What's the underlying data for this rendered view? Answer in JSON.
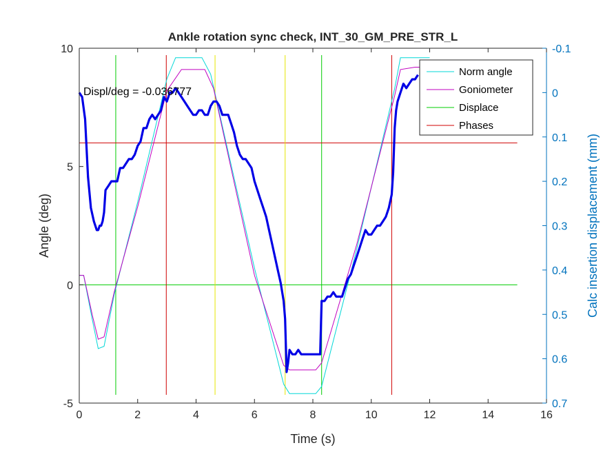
{
  "chart_data": {
    "type": "line",
    "title": "Ankle rotation sync check, INT_30_GM_PRE_STR_L",
    "xlabel": "Time (s)",
    "ylabel": "Angle (deg)",
    "y2label": "Calc insertion displacement (mm)",
    "xlim": [
      0,
      16
    ],
    "ylim": [
      -5,
      10
    ],
    "y2lim": [
      -0.1,
      0.7
    ],
    "y2_direction": "reversed",
    "xticks": [
      "0",
      "2",
      "4",
      "6",
      "8",
      "10",
      "12",
      "14",
      "16"
    ],
    "yticks": [
      "-5",
      "0",
      "5",
      "10"
    ],
    "y2ticks": [
      "-0.1",
      "0",
      "0.1",
      "0.2",
      "0.3",
      "0.4",
      "0.5",
      "0.6",
      "0.7"
    ],
    "annotation": "Displ/deg = -0.036777",
    "legend_position": "top-right",
    "colors": {
      "norm_angle": "#00d7d7",
      "goniometer": "#c000c0",
      "displace": "#00cc00",
      "phases": "#d00000",
      "yellow": "#e6e600",
      "displacement": "#0000e6",
      "axis_right": "#0072bd"
    },
    "series": [
      {
        "name": "Norm angle",
        "axis": "left",
        "x": [
          0,
          0.15,
          0.45,
          0.65,
          0.85,
          1.2,
          2.0,
          3.0,
          3.3,
          4.2,
          4.5,
          6.0,
          7.0,
          7.2,
          8.1,
          8.3,
          9.5,
          10.8,
          11.0,
          11.6,
          11.7,
          12.0
        ],
        "y": [
          0.4,
          0.4,
          -1.5,
          -2.7,
          -2.6,
          -0.4,
          3.5,
          8.7,
          9.6,
          9.6,
          8.9,
          0.7,
          -4.2,
          -4.6,
          -4.6,
          -4.3,
          1.5,
          8.3,
          9.6,
          9.6,
          9.6,
          9.6
        ]
      },
      {
        "name": "Goniometer",
        "axis": "left",
        "x": [
          0,
          0.15,
          0.45,
          0.65,
          0.85,
          1.2,
          2.0,
          3.0,
          3.5,
          4.3,
          4.6,
          6.0,
          7.0,
          7.2,
          8.1,
          8.3,
          9.5,
          10.8,
          11.0,
          11.5,
          11.6,
          12.0
        ],
        "y": [
          0.4,
          0.4,
          -1.3,
          -2.3,
          -2.2,
          -0.3,
          3.3,
          8.2,
          9.1,
          9.1,
          8.3,
          0.4,
          -3.4,
          -3.6,
          -3.6,
          -3.3,
          1.7,
          8.0,
          9.1,
          9.2,
          9.2,
          9.2
        ]
      },
      {
        "name": "Displace",
        "axis": "left",
        "kind": "reference-lines",
        "vertical_x": [
          1.25,
          8.3
        ],
        "horizontal_y": [
          0
        ]
      },
      {
        "name": "Phases",
        "axis": "left",
        "kind": "reference-lines",
        "vertical_x": [
          2.98,
          10.7
        ],
        "horizontal_y": [
          6
        ]
      },
      {
        "axis": "left",
        "kind": "reference-lines",
        "vertical_x": [
          4.65,
          7.05
        ]
      },
      {
        "axis": "right",
        "x": [
          0,
          0.1,
          0.2,
          0.3,
          0.4,
          0.5,
          0.55,
          0.6,
          0.65,
          0.7,
          0.75,
          0.8,
          0.85,
          0.9,
          1.0,
          1.1,
          1.2,
          1.3,
          1.4,
          1.5,
          1.6,
          1.7,
          1.8,
          1.9,
          2.0,
          2.1,
          2.2,
          2.3,
          2.4,
          2.5,
          2.6,
          2.7,
          2.8,
          2.9,
          3.0,
          3.1,
          3.2,
          3.3,
          3.4,
          3.5,
          3.6,
          3.7,
          3.8,
          3.9,
          4.0,
          4.1,
          4.2,
          4.3,
          4.4,
          4.5,
          4.6,
          4.7,
          4.8,
          4.9,
          5.0,
          5.1,
          5.2,
          5.3,
          5.4,
          5.5,
          5.6,
          5.7,
          5.8,
          5.9,
          6.0,
          6.1,
          6.2,
          6.3,
          6.4,
          6.5,
          6.6,
          6.7,
          6.8,
          6.9,
          7.0,
          7.05,
          7.1,
          7.15,
          7.2,
          7.3,
          7.4,
          7.5,
          7.6,
          7.7,
          7.8,
          7.9,
          8.0,
          8.1,
          8.2,
          8.25,
          8.3,
          8.35,
          8.4,
          8.5,
          8.6,
          8.7,
          8.8,
          8.9,
          9.0,
          9.1,
          9.2,
          9.3,
          9.4,
          9.5,
          9.6,
          9.7,
          9.8,
          9.9,
          10.0,
          10.1,
          10.2,
          10.3,
          10.4,
          10.5,
          10.6,
          10.7,
          10.75,
          10.8,
          10.85,
          10.9,
          11.0,
          11.1,
          11.2,
          11.3,
          11.4,
          11.5,
          11.6
        ],
        "y": [
          0.0,
          0.01,
          0.06,
          0.19,
          0.26,
          0.29,
          0.3,
          0.31,
          0.31,
          0.3,
          0.3,
          0.29,
          0.27,
          0.22,
          0.21,
          0.2,
          0.2,
          0.2,
          0.17,
          0.17,
          0.16,
          0.15,
          0.15,
          0.14,
          0.12,
          0.11,
          0.08,
          0.08,
          0.06,
          0.05,
          0.06,
          0.05,
          0.04,
          0.01,
          0.02,
          0.0,
          0.0,
          -0.01,
          0.0,
          0.01,
          0.02,
          0.03,
          0.04,
          0.05,
          0.05,
          0.04,
          0.04,
          0.05,
          0.05,
          0.03,
          0.02,
          0.02,
          0.03,
          0.05,
          0.05,
          0.05,
          0.07,
          0.09,
          0.12,
          0.14,
          0.15,
          0.15,
          0.16,
          0.17,
          0.2,
          0.22,
          0.24,
          0.26,
          0.28,
          0.31,
          0.34,
          0.37,
          0.4,
          0.43,
          0.47,
          0.51,
          0.63,
          0.61,
          0.58,
          0.59,
          0.59,
          0.58,
          0.59,
          0.59,
          0.59,
          0.59,
          0.59,
          0.59,
          0.59,
          0.59,
          0.47,
          0.47,
          0.47,
          0.46,
          0.46,
          0.45,
          0.46,
          0.46,
          0.46,
          0.44,
          0.42,
          0.41,
          0.39,
          0.37,
          0.35,
          0.33,
          0.31,
          0.32,
          0.32,
          0.31,
          0.3,
          0.3,
          0.29,
          0.28,
          0.26,
          0.23,
          0.18,
          0.08,
          0.04,
          0.02,
          0.0,
          -0.02,
          -0.01,
          -0.02,
          -0.03,
          -0.03,
          -0.04
        ]
      }
    ]
  }
}
